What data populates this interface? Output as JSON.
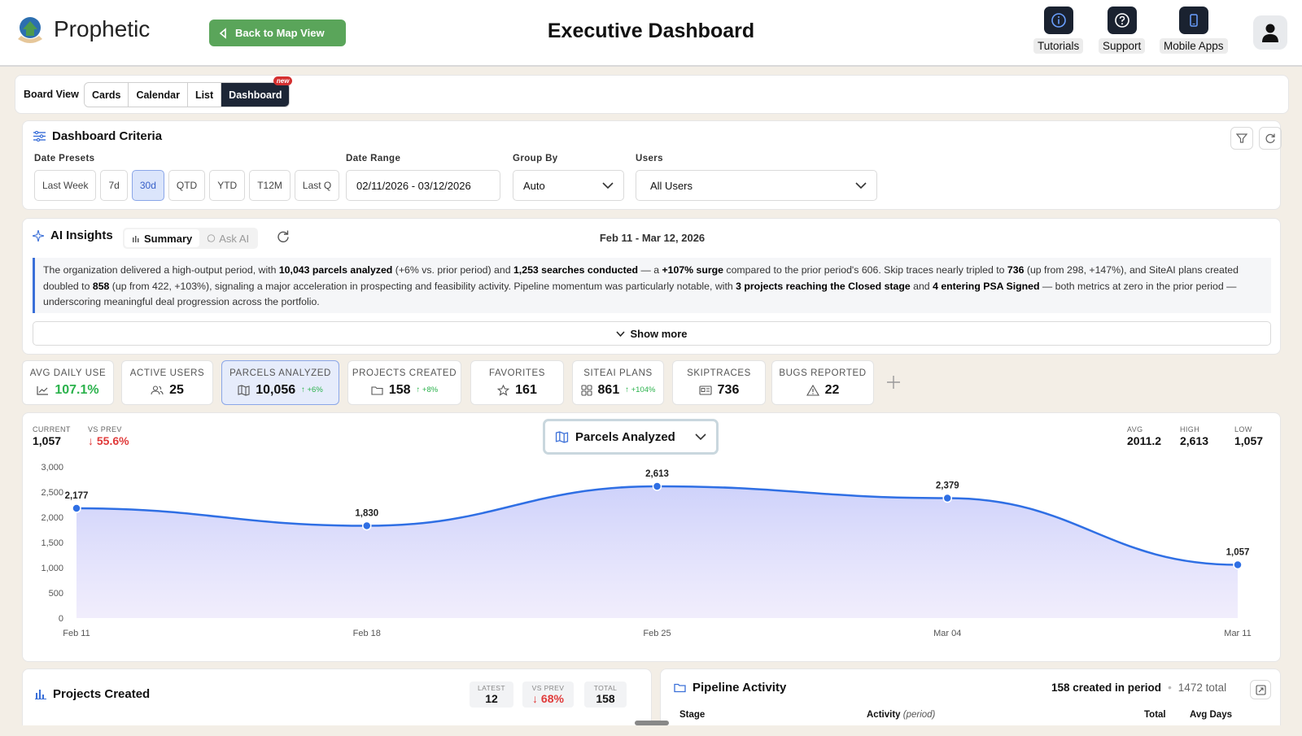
{
  "app": {
    "brand": "Prophetic",
    "back_label": "Back to Map View",
    "title": "Executive Dashboard"
  },
  "topnav": [
    {
      "label": "Tutorials",
      "icon": "info-icon"
    },
    {
      "label": "Support",
      "icon": "help-icon"
    },
    {
      "label": "Mobile Apps",
      "icon": "phone-icon"
    }
  ],
  "view_tabs": {
    "label": "Board View",
    "tabs": [
      "Cards",
      "Calendar",
      "List",
      "Dashboard"
    ],
    "active": "Dashboard",
    "badge": "new"
  },
  "criteria": {
    "title": "Dashboard Criteria",
    "presets_label": "Date Presets",
    "presets": [
      "Last Week",
      "7d",
      "30d",
      "QTD",
      "YTD",
      "T12M",
      "Last Q"
    ],
    "active_preset": "30d",
    "date_range_label": "Date Range",
    "date_range": "02/11/2026 - 03/12/2026",
    "group_by_label": "Group By",
    "group_by": "Auto",
    "users_label": "Users",
    "users": "All Users"
  },
  "insights": {
    "title": "AI Insights",
    "tab_summary": "Summary",
    "tab_ask": "Ask AI",
    "date": "Feb 11 - Mar 12, 2026",
    "show_more": "Show more"
  },
  "metrics": [
    {
      "label": "AVG DAILY USE",
      "value": "107.1%",
      "icon": "trend-icon",
      "delta": ""
    },
    {
      "label": "ACTIVE USERS",
      "value": "25",
      "icon": "users-icon",
      "delta": ""
    },
    {
      "label": "PARCELS ANALYZED",
      "value": "10,056",
      "icon": "map-icon",
      "delta": "↑ +6%"
    },
    {
      "label": "PROJECTS CREATED",
      "value": "158",
      "icon": "folder-icon",
      "delta": "↑ +8%"
    },
    {
      "label": "FAVORITES",
      "value": "161",
      "icon": "star-icon",
      "delta": ""
    },
    {
      "label": "SITEAI PLANS",
      "value": "861",
      "icon": "grid-icon",
      "delta": "↑ +104%"
    },
    {
      "label": "SKIPTRACES",
      "value": "736",
      "icon": "id-card-icon",
      "delta": ""
    },
    {
      "label": "BUGS REPORTED",
      "value": "22",
      "icon": "warning-icon",
      "delta": ""
    }
  ],
  "chart_header": {
    "current_label": "CURRENT",
    "current": "1,057",
    "vsprev_label": "VS PREV",
    "vsprev": "↓ 55.6%",
    "metric_name": "Parcels Analyzed",
    "avg_label": "AVG",
    "avg": "2011.2",
    "high_label": "HIGH",
    "high": "2,613",
    "low_label": "LOW",
    "low": "1,057"
  },
  "chart_data": {
    "type": "area",
    "title": "",
    "xlabel": "",
    "ylabel": "",
    "x": [
      "Feb 11",
      "Feb 18",
      "Feb 25",
      "Mar 04",
      "Mar 11"
    ],
    "values": [
      2177,
      1830,
      2613,
      2379,
      1057
    ],
    "data_labels": [
      "2,177",
      "1,830",
      "2,613",
      "2,379",
      "1,057"
    ],
    "yticks": [
      "0",
      "500",
      "1,000",
      "1,500",
      "2,000",
      "2,500",
      "3,000"
    ],
    "ylim": [
      0,
      3000
    ],
    "grid": false,
    "color": "#2f6fe4"
  },
  "projects": {
    "title": "Projects Created",
    "latest_label": "LATEST",
    "latest": "12",
    "vsprev_label": "VS PREV",
    "vsprev": "↓ 68%",
    "total_label": "TOTAL",
    "total": "158"
  },
  "pipeline": {
    "title": "Pipeline Activity",
    "created": "158 created in period",
    "total": "1472 total",
    "col_stage": "Stage",
    "col_activity": "Activity",
    "col_activity_sub": "(period)",
    "col_total": "Total",
    "col_avg": "Avg Days"
  }
}
